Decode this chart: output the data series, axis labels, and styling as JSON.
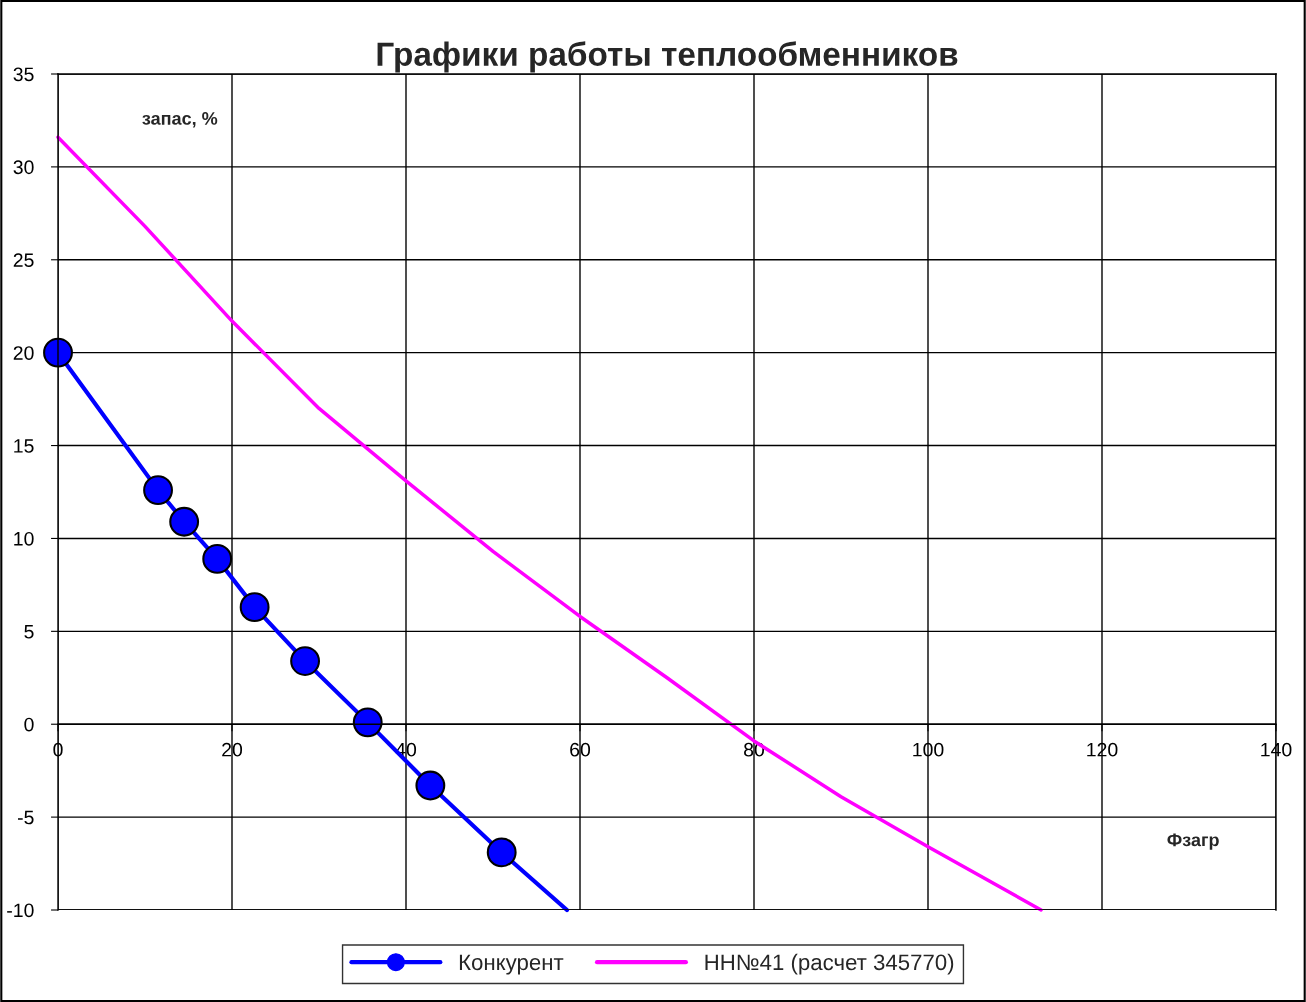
{
  "chart_data": {
    "type": "line",
    "title": "Графики работы теплообменников",
    "xlabel": "Фзагр",
    "ylabel": "запас, %",
    "xlim": [
      0,
      140
    ],
    "xticks": [
      0,
      20,
      40,
      60,
      80,
      100,
      120,
      140
    ],
    "ylim": [
      -10,
      35
    ],
    "yticks": [
      -10,
      -5,
      0,
      5,
      10,
      15,
      20,
      25,
      30,
      35
    ],
    "grid": true,
    "legend": "bottom",
    "series": [
      {
        "name": "Конкурент",
        "color": "#0000ff",
        "marker": "circle",
        "x": [
          0,
          11.5,
          14.5,
          18.3,
          22.6,
          28.4,
          35.6,
          42.8,
          51.0,
          58.5
        ],
        "values": [
          20.0,
          12.6,
          10.9,
          8.9,
          6.3,
          3.4,
          0.1,
          -3.3,
          -6.9,
          -10.0
        ]
      },
      {
        "name": "НН№41 (расчет 345770)",
        "color": "#ff00ff",
        "marker": "none",
        "x": [
          0,
          10,
          20,
          30,
          40,
          50,
          60,
          70,
          80,
          90,
          100,
          113
        ],
        "values": [
          31.6,
          26.8,
          21.7,
          17.0,
          13.1,
          9.3,
          5.8,
          2.5,
          -0.9,
          -3.9,
          -6.6,
          -10.0
        ]
      }
    ]
  }
}
